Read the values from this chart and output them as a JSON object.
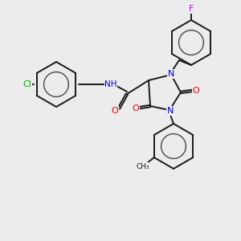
{
  "background_color": "#ececec",
  "bond_color": "#1a1a1a",
  "atom_colors": {
    "N": "#0000ee",
    "O": "#ee0000",
    "Cl": "#00aa00",
    "F": "#cc00cc",
    "H": "#777777"
  },
  "figsize": [
    3.0,
    3.0
  ],
  "dpi": 100,
  "lw": 1.4,
  "font_size": 7.5
}
